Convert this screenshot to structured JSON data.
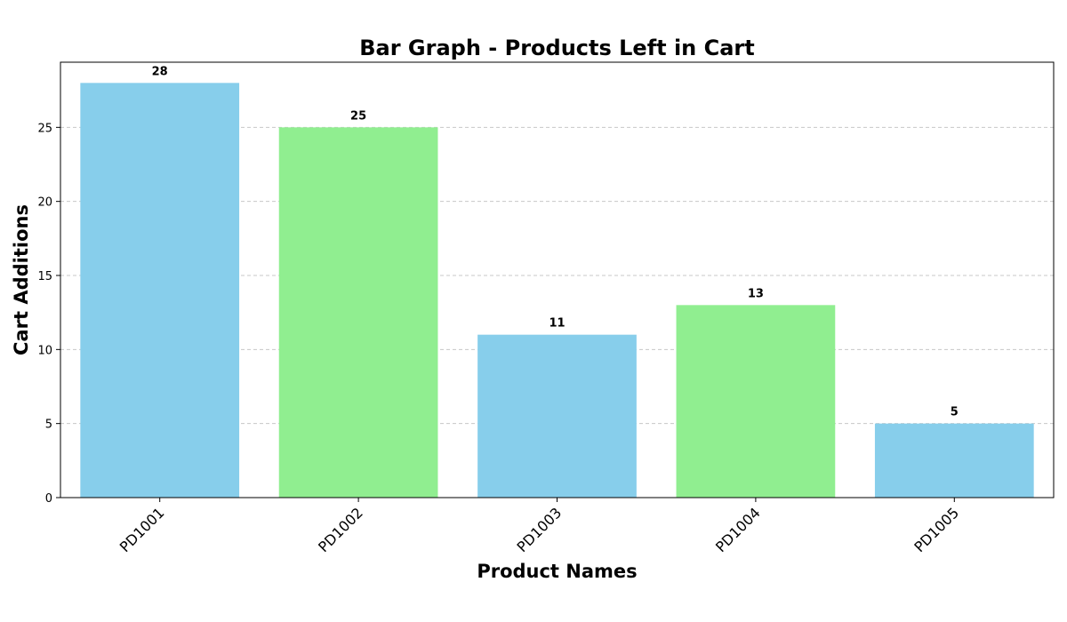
{
  "chart_data": {
    "type": "bar",
    "title": "Bar Graph - Products Left in Cart",
    "xlabel": "Product Names",
    "ylabel": "Cart Additions",
    "categories": [
      "PD1001",
      "PD1002",
      "PD1003",
      "PD1004",
      "PD1005"
    ],
    "values": [
      28,
      25,
      11,
      13,
      5
    ],
    "bar_colors": [
      "#87ceeb",
      "#90ee90",
      "#87ceeb",
      "#90ee90",
      "#87ceeb"
    ],
    "ylim": [
      0,
      29.4
    ],
    "yticks": [
      0,
      5,
      10,
      15,
      20,
      25
    ],
    "grid": {
      "axis": "y",
      "style": "dashed",
      "color": "#c8c8c8"
    },
    "xtick_rotation": 45
  }
}
